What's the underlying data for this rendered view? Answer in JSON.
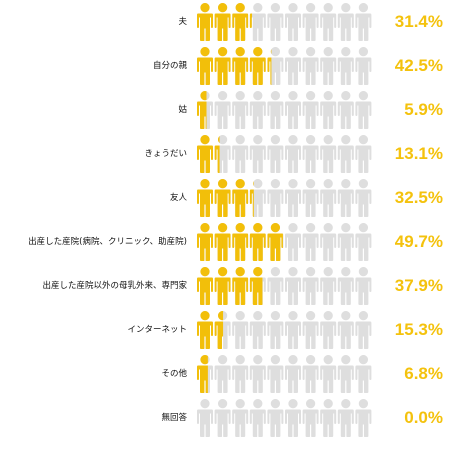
{
  "colors": {
    "filled": "#f2bf0a",
    "empty": "#dedede",
    "value_text": "#f4c20d",
    "label_text": "#111111"
  },
  "icon": "person-icon",
  "icons_per_row": 10,
  "chart_data": {
    "type": "pictograph",
    "categories": [
      "夫",
      "自分の親",
      "姑",
      "きょうだい",
      "友人",
      "出産した産院(病院、クリニック、助産院)",
      "出産した産院以外の母乳外来、専門家",
      "インターネット",
      "その他",
      "無回答"
    ],
    "values": [
      31.4,
      42.5,
      5.9,
      13.1,
      32.5,
      49.7,
      37.9,
      15.3,
      6.8,
      0.0
    ],
    "value_labels": [
      "31.4%",
      "42.5%",
      "5.9%",
      "13.1%",
      "32.5%",
      "49.7%",
      "37.9%",
      "15.3%",
      "6.8%",
      "0.0%"
    ],
    "unit": "%",
    "ylim": [
      0,
      100
    ],
    "title": "",
    "xlabel": "",
    "ylabel": ""
  }
}
